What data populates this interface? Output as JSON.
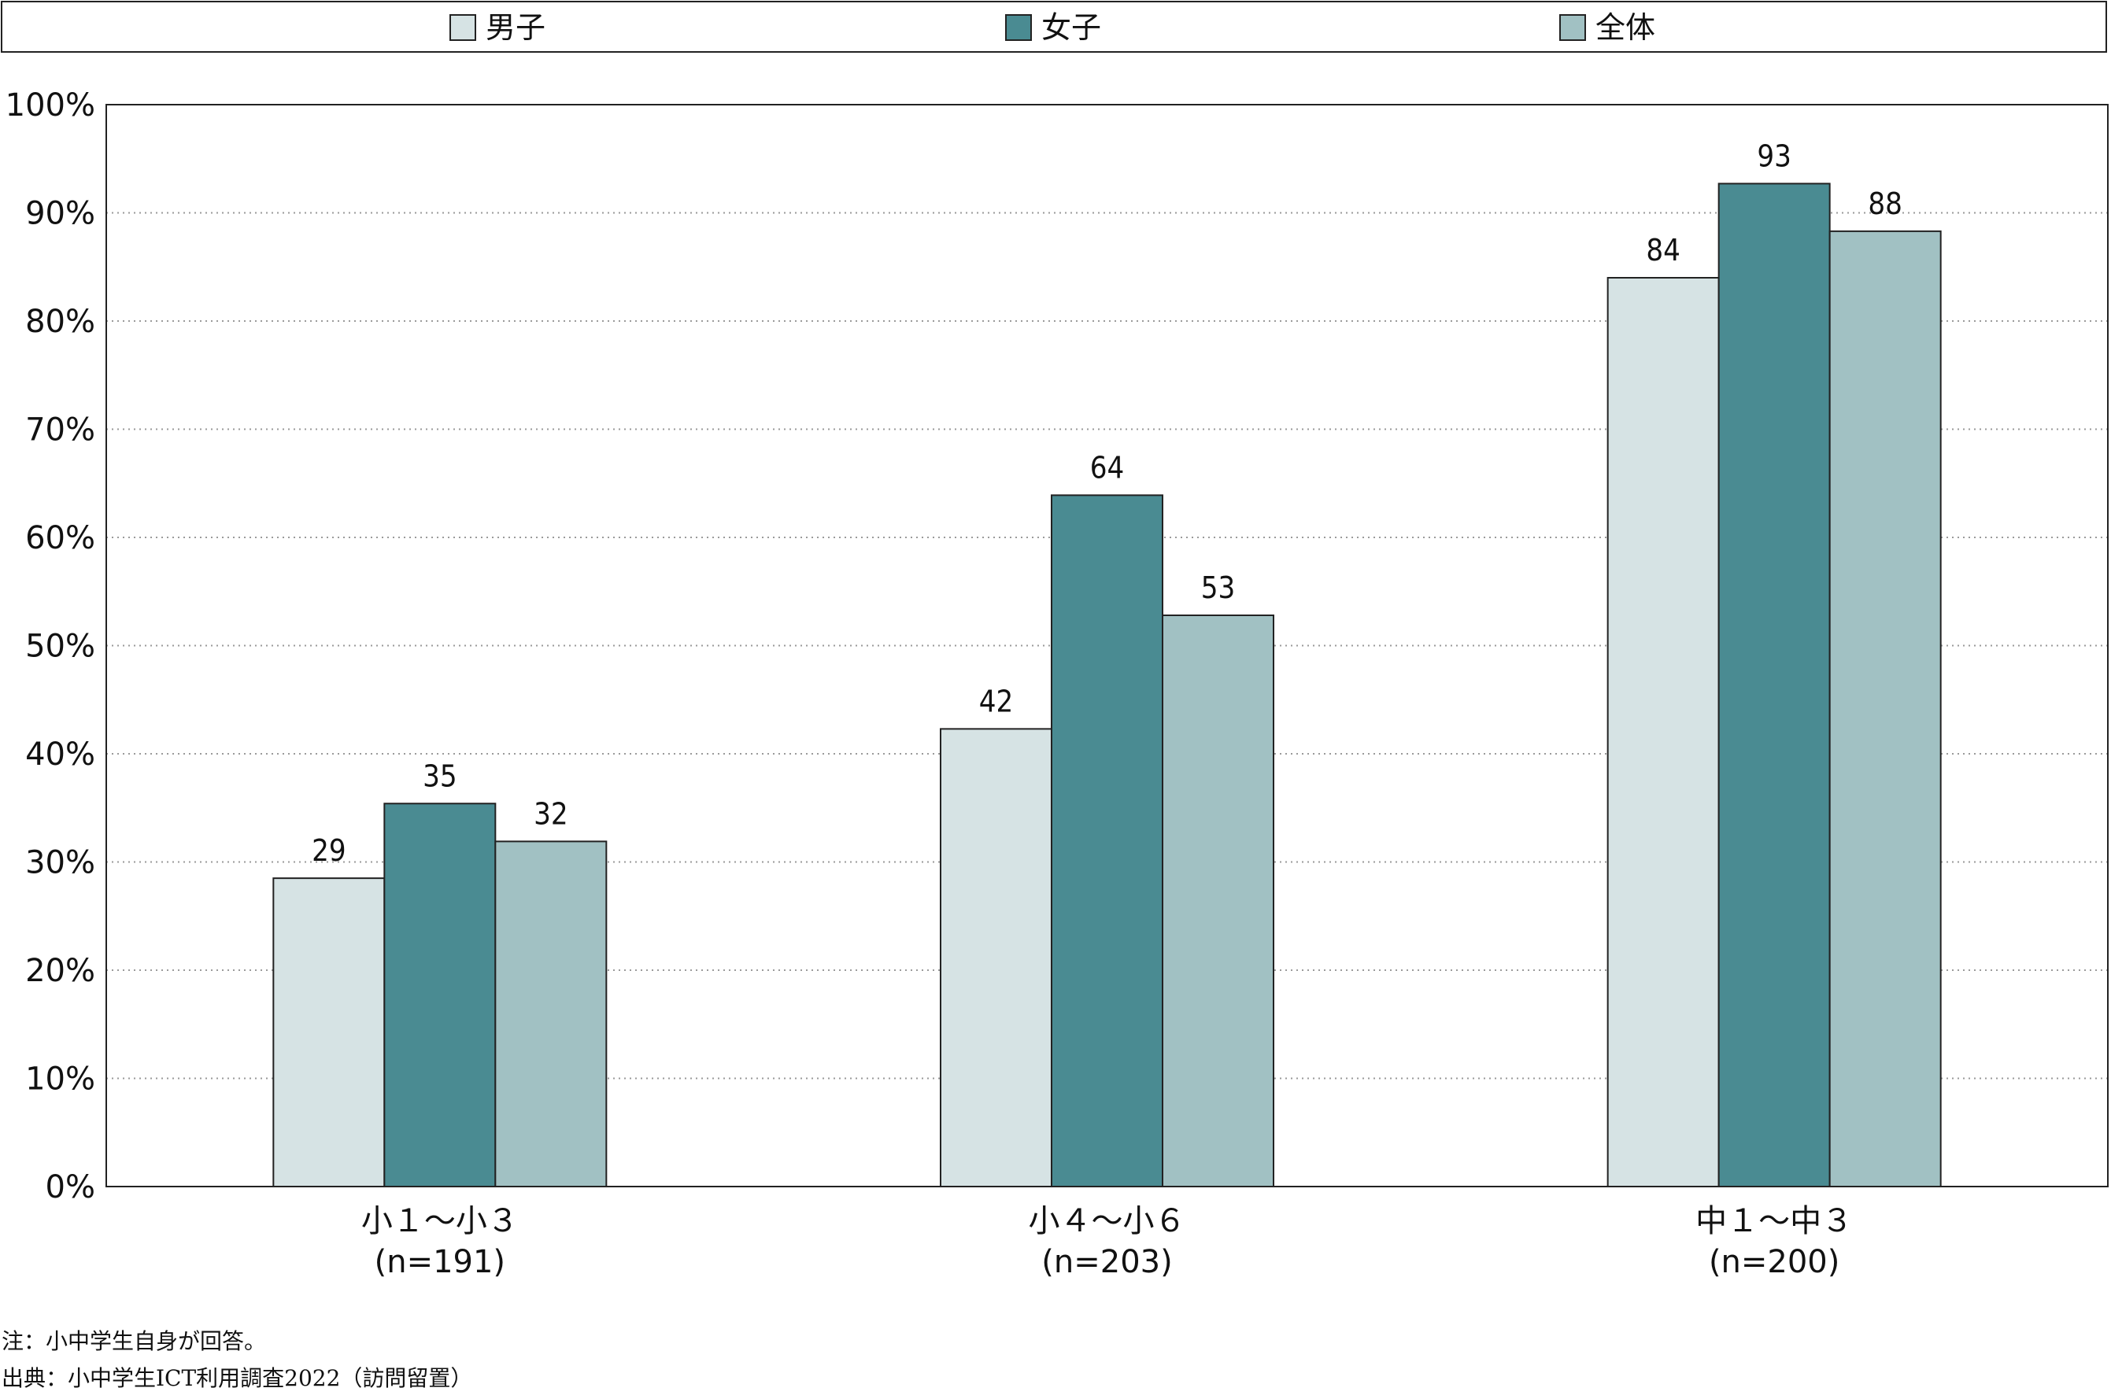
{
  "colors": {
    "male": "#d6e3e4",
    "female": "#4a8b92",
    "total": "#a1c1c3",
    "axis": "#222222",
    "grid": "#9a9a9a"
  },
  "legend": [
    {
      "label": "男子",
      "key": "male"
    },
    {
      "label": "女子",
      "key": "female"
    },
    {
      "label": "全体",
      "key": "total"
    }
  ],
  "chart_data": {
    "type": "bar",
    "categories": [
      {
        "line1": "小１〜小３",
        "line2": "(n=191)"
      },
      {
        "line1": "小４〜小６",
        "line2": "(n=203)"
      },
      {
        "line1": "中１〜中３",
        "line2": "(n=200)"
      }
    ],
    "series": [
      {
        "name": "男子",
        "key": "male",
        "values": [
          29,
          42,
          84
        ],
        "plot_values": [
          28.5,
          42.3,
          84.0
        ]
      },
      {
        "name": "女子",
        "key": "female",
        "values": [
          35,
          64,
          93
        ],
        "plot_values": [
          35.4,
          63.9,
          92.7
        ]
      },
      {
        "name": "全体",
        "key": "total",
        "values": [
          32,
          53,
          88
        ],
        "plot_values": [
          31.9,
          52.8,
          88.3
        ]
      }
    ],
    "ylim": [
      0,
      100
    ],
    "yticks": [
      "0%",
      "10%",
      "20%",
      "30%",
      "40%",
      "50%",
      "60%",
      "70%",
      "80%",
      "90%",
      "100%"
    ],
    "grid": true,
    "legend_position": "top"
  },
  "notes": {
    "note": "注：小中学生自身が回答。",
    "source": "出典：小中学生ICT利用調査2022（訪問留置）"
  }
}
